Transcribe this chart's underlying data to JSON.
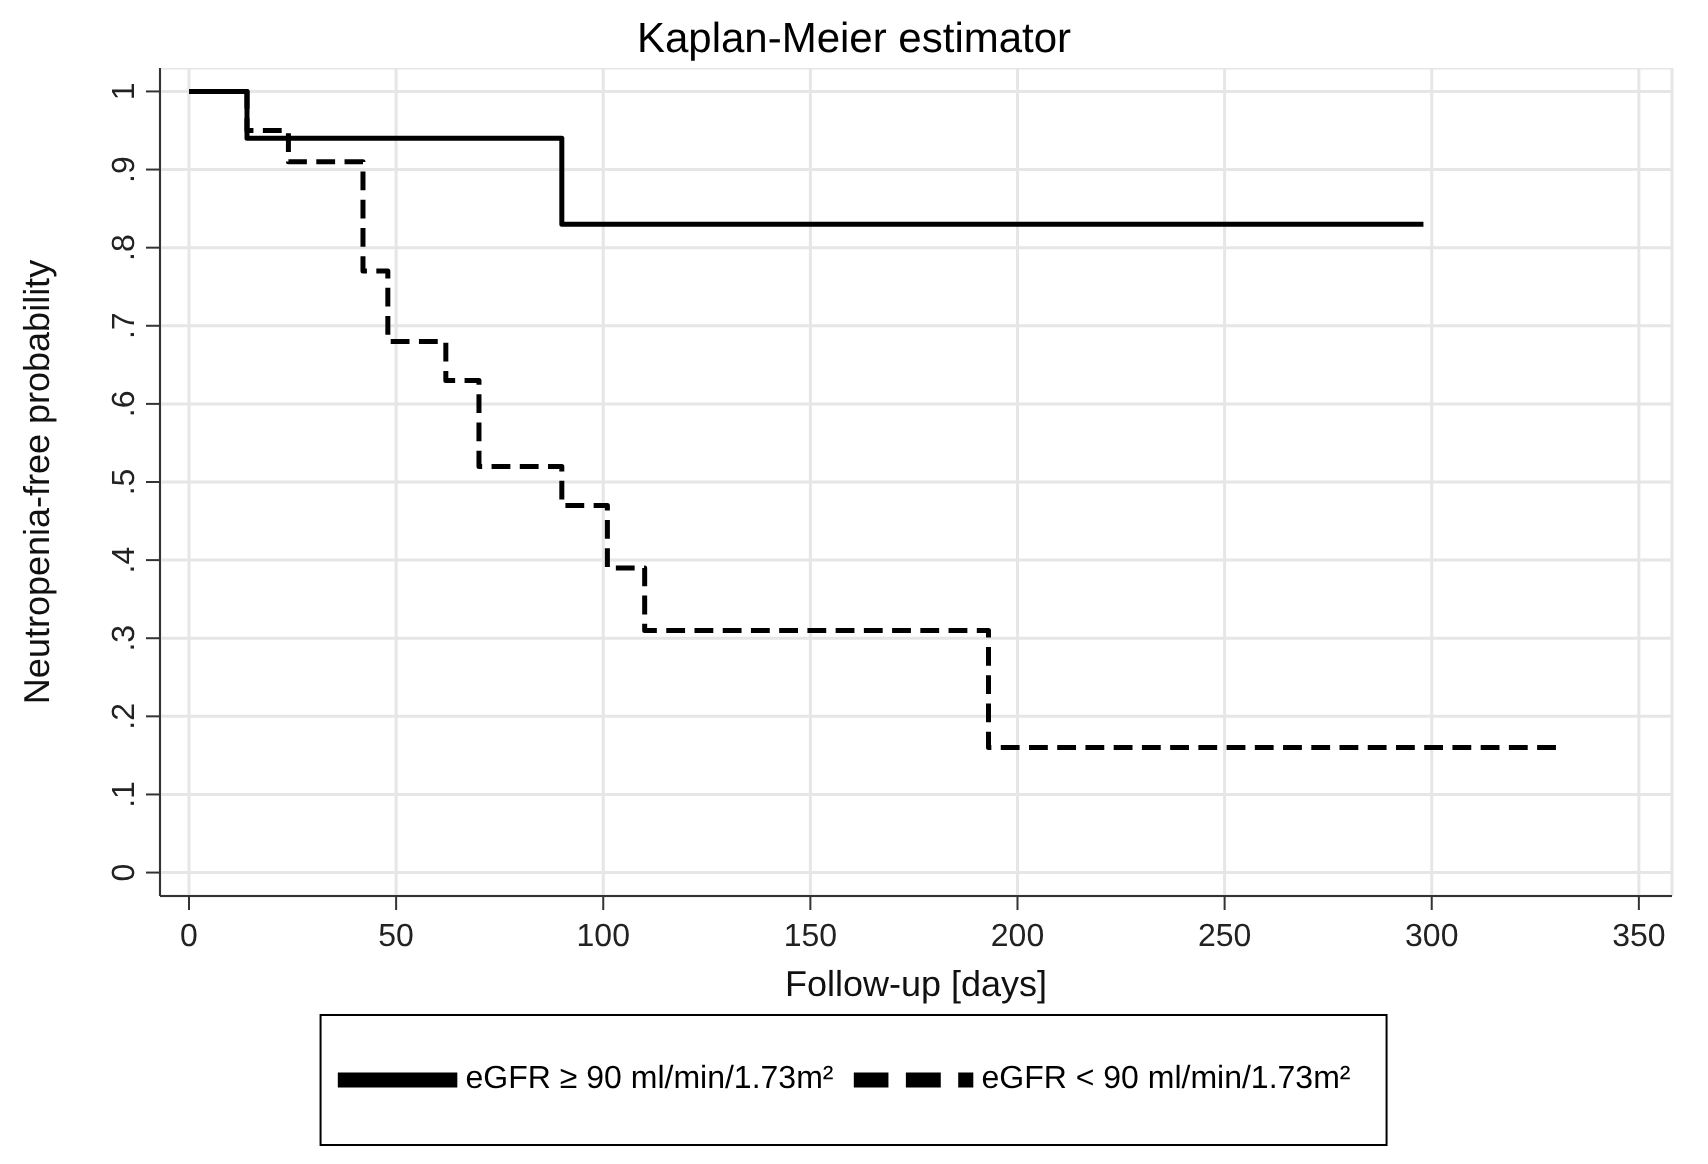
{
  "chart_data": {
    "type": "step",
    "title": "Kaplan-Meier estimator",
    "xlabel": "Follow-up [days]",
    "ylabel": "Neutropenia-free probability",
    "series": [
      {
        "name": "eGFR ≥ 90 ml/min/1.73m²",
        "color": "#000000",
        "line_style": "solid",
        "x": [
          0,
          14,
          90,
          298
        ],
        "values": [
          1,
          0.94,
          0.83,
          0.83
        ]
      },
      {
        "name": "eGFR < 90 ml/min/1.73m²",
        "color": "#000000",
        "line_style": "dashed",
        "x": [
          0,
          14,
          24,
          42,
          48,
          62,
          70,
          90,
          101,
          110,
          193,
          330
        ],
        "values": [
          1,
          0.95,
          0.91,
          0.77,
          0.68,
          0.63,
          0.52,
          0.47,
          0.39,
          0.31,
          0.16,
          0.16
        ]
      }
    ],
    "xlim": [
      -7,
      358
    ],
    "xticks": [
      0,
      50,
      100,
      150,
      200,
      250,
      300,
      350
    ],
    "ylim": [
      -0.03,
      1.03
    ],
    "yticks": [
      {
        "value": 0,
        "label": "0"
      },
      {
        "value": 0.1,
        "label": ".1"
      },
      {
        "value": 0.2,
        "label": ".2"
      },
      {
        "value": 0.3,
        "label": ".3"
      },
      {
        "value": 0.4,
        "label": ".4"
      },
      {
        "value": 0.5,
        "label": ".5"
      },
      {
        "value": 0.6,
        "label": ".6"
      },
      {
        "value": 0.7,
        "label": ".7"
      },
      {
        "value": 0.8,
        "label": ".8"
      },
      {
        "value": 0.9,
        "label": ".9"
      },
      {
        "value": 1,
        "label": "1"
      }
    ],
    "grid": true,
    "legend": "bottom",
    "marker": "none"
  }
}
